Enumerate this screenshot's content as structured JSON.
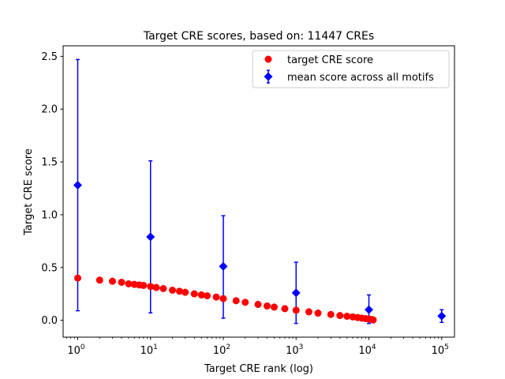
{
  "chart_data": {
    "type": "scatter",
    "title": "Target CRE scores, based on: 11447 CREs",
    "xlabel": "Target CRE rank (log)",
    "ylabel": "Target CRE score",
    "xscale": "log",
    "xlim": [
      0.63,
      150000
    ],
    "ylim": [
      -0.16,
      2.6
    ],
    "xticks": [
      {
        "value": 1,
        "base": "10",
        "exp": "0"
      },
      {
        "value": 10,
        "base": "10",
        "exp": "1"
      },
      {
        "value": 100,
        "base": "10",
        "exp": "2"
      },
      {
        "value": 1000,
        "base": "10",
        "exp": "3"
      },
      {
        "value": 10000,
        "base": "10",
        "exp": "4"
      },
      {
        "value": 100000,
        "base": "10",
        "exp": "5"
      }
    ],
    "yticks": [
      "0.0",
      "0.5",
      "1.0",
      "1.5",
      "2.0",
      "2.5"
    ],
    "grid": false,
    "legend_position": "top-right",
    "series": [
      {
        "name": "target CRE score",
        "kind": "points",
        "marker": "circle",
        "color": "#ff0000",
        "x": [
          1,
          2,
          3,
          4,
          5,
          6,
          7,
          8,
          10,
          12,
          15,
          20,
          25,
          30,
          40,
          50,
          60,
          80,
          100,
          150,
          200,
          300,
          400,
          500,
          700,
          1000,
          1500,
          2000,
          3000,
          4000,
          5000,
          6000,
          7000,
          8000,
          9000,
          10000,
          11000,
          11447
        ],
        "y": [
          0.4,
          0.38,
          0.37,
          0.36,
          0.345,
          0.34,
          0.335,
          0.33,
          0.32,
          0.31,
          0.3,
          0.285,
          0.275,
          0.265,
          0.25,
          0.24,
          0.232,
          0.22,
          0.205,
          0.185,
          0.17,
          0.15,
          0.135,
          0.125,
          0.11,
          0.095,
          0.08,
          0.068,
          0.055,
          0.045,
          0.038,
          0.032,
          0.026,
          0.02,
          0.016,
          0.012,
          0.007,
          0.003
        ]
      },
      {
        "name": "mean score across all motifs",
        "kind": "errorbar",
        "marker": "diamond",
        "color": "#0000ff",
        "x": [
          1,
          10,
          100,
          1000,
          10000,
          100000
        ],
        "y": [
          1.28,
          0.79,
          0.51,
          0.26,
          0.1,
          0.04
        ],
        "ylow": [
          0.09,
          0.07,
          0.02,
          -0.03,
          -0.03,
          -0.02
        ],
        "yhigh": [
          2.47,
          1.51,
          0.99,
          0.55,
          0.24,
          0.1
        ]
      }
    ]
  }
}
